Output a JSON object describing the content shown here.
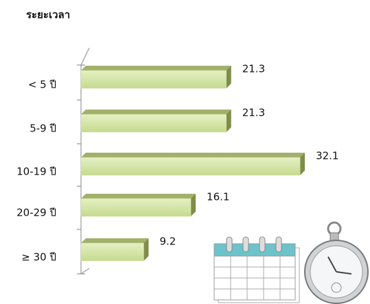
{
  "chart_data": {
    "type": "bar",
    "orientation": "horizontal",
    "title": "ระยะเวลา",
    "categories": [
      "< 5 ปี",
      "5-9 ปี",
      "10-19 ปี",
      "20-29 ปี",
      "≥ 30 ปี"
    ],
    "values": [
      21.3,
      21.3,
      32.1,
      16.1,
      9.2
    ],
    "color": "#d2e3a2"
  }
}
